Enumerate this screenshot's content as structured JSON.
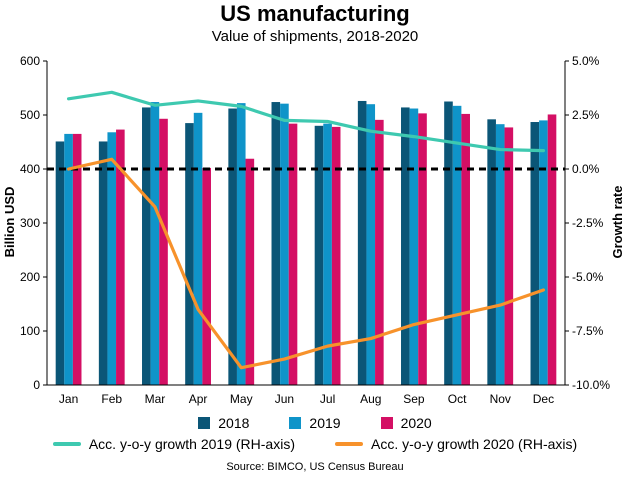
{
  "chart_data": {
    "type": "bar",
    "title": "US manufacturing",
    "subtitle": "Value of shipments, 2018-2020",
    "ylabel": "Billion USD",
    "y2label": "Growth rate",
    "source": "Source: BIMCO, US Census Bureau",
    "categories": [
      "Jan",
      "Feb",
      "Mar",
      "Apr",
      "May",
      "Jun",
      "Jul",
      "Aug",
      "Sep",
      "Oct",
      "Nov",
      "Dec"
    ],
    "ylim": [
      0,
      600
    ],
    "yticks": [
      "0",
      "100",
      "200",
      "300",
      "400",
      "500",
      "600"
    ],
    "y2lim": [
      -10.0,
      5.0
    ],
    "y2ticks": [
      "-10.0%",
      "-7.5%",
      "-5.0%",
      "-2.5%",
      "0.0%",
      "2.5%",
      "5.0%"
    ],
    "bar_series": [
      {
        "name": "2018",
        "color": "#0b5677",
        "values": [
          451,
          451,
          514,
          485,
          512,
          524,
          480,
          526,
          514,
          525,
          492,
          487
        ]
      },
      {
        "name": "2019",
        "color": "#0f94c9",
        "values": [
          465,
          468,
          524,
          504,
          522,
          521,
          484,
          520,
          512,
          517,
          483,
          490
        ]
      },
      {
        "name": "2020",
        "color": "#d40f64",
        "values": [
          465,
          473,
          493,
          402,
          419,
          484,
          478,
          491,
          503,
          502,
          477,
          501
        ]
      }
    ],
    "line_series": [
      {
        "name": "Acc. y-o-y growth 2019 (RH-axis)",
        "color": "#3ec9b0",
        "values": [
          3.25,
          3.55,
          2.95,
          3.15,
          2.9,
          2.25,
          2.2,
          1.75,
          1.5,
          1.2,
          0.9,
          0.85
        ]
      },
      {
        "name": "Acc. y-o-y growth 2020 (RH-axis)",
        "color": "#f7922b",
        "values": [
          0.0,
          0.45,
          -1.75,
          -6.5,
          -9.2,
          -8.8,
          -8.2,
          -7.85,
          -7.2,
          -6.75,
          -6.3,
          -5.6
        ]
      }
    ],
    "zero_line": "dashed black at 0.0%",
    "grid": false
  }
}
